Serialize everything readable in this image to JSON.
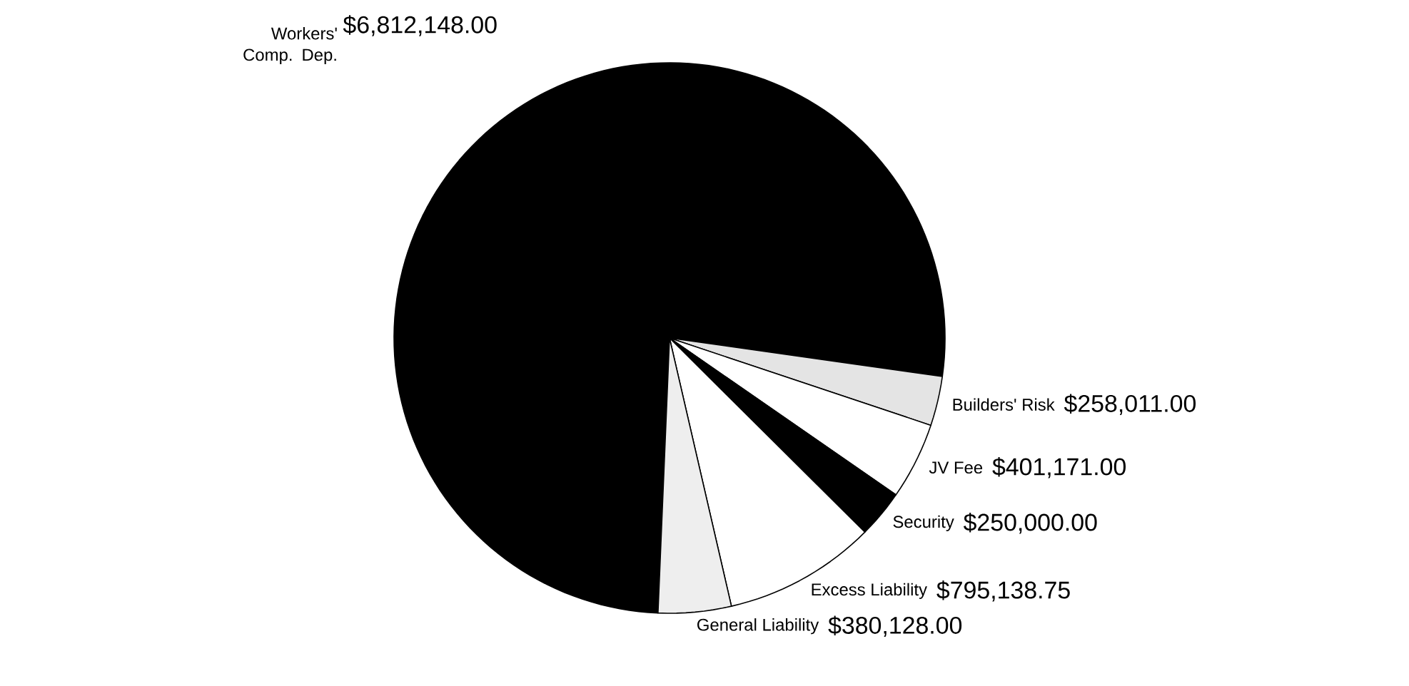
{
  "chart_data": {
    "type": "pie",
    "categories": [
      "Workers' Comp. Dep.",
      "Builders' Risk",
      "JV Fee",
      "Security",
      "Excess Liability",
      "General Liability"
    ],
    "values": [
      6812148.0,
      258011.0,
      401171.0,
      250000.0,
      795138.75,
      380128.0
    ],
    "value_labels": [
      "$6,812,148.00",
      "$258,011.00",
      "$401,171.00",
      "$250,000.00",
      "$795,138.75",
      "$380,128.00"
    ],
    "colors": [
      "#000000",
      "#e4e4e4",
      "#ffffff",
      "#000000",
      "#ffffff",
      "#eeeeee"
    ]
  }
}
